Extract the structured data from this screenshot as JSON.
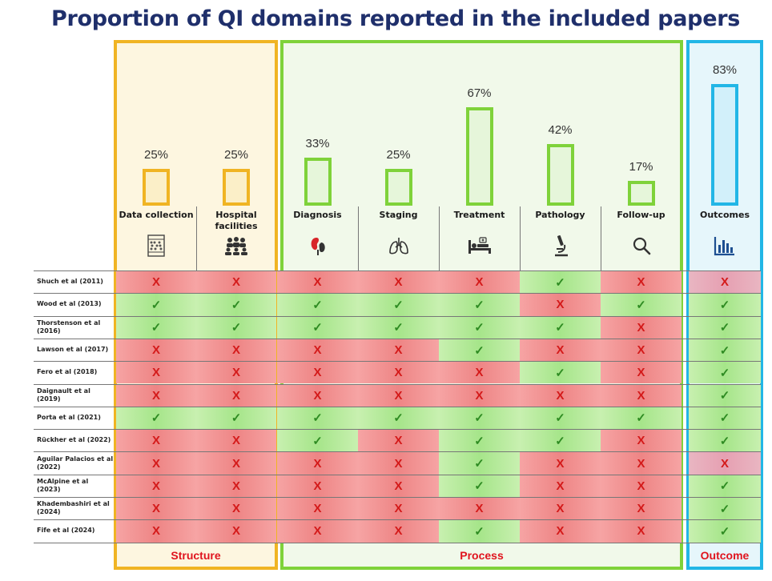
{
  "title": "Proportion of QI domains reported in the included papers",
  "groups": [
    {
      "label": "Structure",
      "color": "#f0b423"
    },
    {
      "label": "Process",
      "color": "#7fd23a"
    },
    {
      "label": "Outcome",
      "color": "#22b6e6"
    }
  ],
  "columns": [
    {
      "label": "Data collection",
      "icon": "abacus-icon",
      "group": 0
    },
    {
      "label": "Hospital facilities",
      "icon": "people-meeting-icon",
      "group": 0
    },
    {
      "label": "Diagnosis",
      "icon": "kidney-icon",
      "group": 1
    },
    {
      "label": "Staging",
      "icon": "lungs-icon",
      "group": 1
    },
    {
      "label": "Treatment",
      "icon": "hospital-bed-icon",
      "group": 1
    },
    {
      "label": "Pathology",
      "icon": "microscope-icon",
      "group": 1
    },
    {
      "label": "Follow-up",
      "icon": "magnifier-icon",
      "group": 1
    },
    {
      "label": "Outcomes",
      "icon": "bar-chart-icon",
      "group": 2
    }
  ],
  "rows": [
    {
      "study": "Shuch et al (2011)",
      "values": [
        0,
        0,
        0,
        0,
        0,
        1,
        0,
        0
      ]
    },
    {
      "study": "Wood et al (2013)",
      "values": [
        1,
        1,
        1,
        1,
        1,
        0,
        1,
        1
      ]
    },
    {
      "study": "Thorstenson et al (2016)",
      "values": [
        1,
        1,
        1,
        1,
        1,
        1,
        0,
        1
      ]
    },
    {
      "study": "Lawson et al (2017)",
      "values": [
        0,
        0,
        0,
        0,
        1,
        0,
        0,
        1
      ]
    },
    {
      "study": "Fero et al (2018)",
      "values": [
        0,
        0,
        0,
        0,
        0,
        1,
        0,
        1
      ]
    },
    {
      "study": "Daignault et al (2019)",
      "values": [
        0,
        0,
        0,
        0,
        0,
        0,
        0,
        1
      ]
    },
    {
      "study": "Porta et al (2021)",
      "values": [
        1,
        1,
        1,
        1,
        1,
        1,
        1,
        1
      ]
    },
    {
      "study": "Rückher et al (2022)",
      "values": [
        0,
        0,
        1,
        0,
        1,
        1,
        0,
        1
      ]
    },
    {
      "study": "Aguilar Palacios et al (2022)",
      "values": [
        0,
        0,
        0,
        0,
        1,
        0,
        0,
        0
      ]
    },
    {
      "study": "McAlpine et al (2023)",
      "values": [
        0,
        0,
        0,
        0,
        1,
        0,
        0,
        1
      ]
    },
    {
      "study": "Khadembashiri et al (2024)",
      "values": [
        0,
        0,
        0,
        0,
        0,
        0,
        0,
        1
      ]
    },
    {
      "study": "Fife et al (2024)",
      "values": [
        0,
        0,
        0,
        0,
        1,
        0,
        0,
        1
      ]
    }
  ],
  "symbols": {
    "yes": "✓",
    "no": "X"
  },
  "chart_data": {
    "type": "bar",
    "title": "Proportion of QI domains reported in the included papers",
    "categories": [
      "Data collection",
      "Hospital facilities",
      "Diagnosis",
      "Staging",
      "Treatment",
      "Pathology",
      "Follow-up",
      "Outcomes"
    ],
    "values": [
      25,
      25,
      33,
      25,
      67,
      42,
      17,
      83
    ],
    "value_labels": [
      "25%",
      "25%",
      "33%",
      "25%",
      "67%",
      "42%",
      "17%",
      "83%"
    ],
    "unit": "%",
    "ylim": [
      0,
      100
    ],
    "group_colors": [
      "#f0b423",
      "#f0b423",
      "#7fd23a",
      "#7fd23a",
      "#7fd23a",
      "#7fd23a",
      "#7fd23a",
      "#22b6e6"
    ],
    "fill_colors": [
      "#fbefc8",
      "#fbefc8",
      "#e6f6da",
      "#e6f6da",
      "#e6f6da",
      "#e6f6da",
      "#e6f6da",
      "#d2f0fa"
    ]
  }
}
